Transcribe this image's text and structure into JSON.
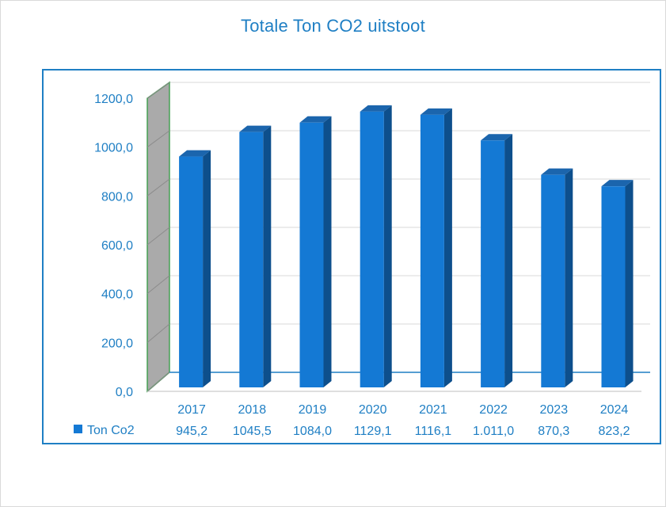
{
  "chart_data": {
    "type": "bar",
    "title": "Totale Ton CO2 uitstoot",
    "categories": [
      "2017",
      "2018",
      "2019",
      "2020",
      "2021",
      "2022",
      "2023",
      "2024"
    ],
    "series": [
      {
        "name": "Ton Co2",
        "values": [
          945.2,
          1045.5,
          1084.0,
          1129.1,
          1116.1,
          1011.0,
          870.3,
          823.2
        ],
        "labels": [
          "945,2",
          "1045,5",
          "1084,0",
          "1129,1",
          "1116,1",
          "1.011,0",
          "870,3",
          "823,2"
        ]
      }
    ],
    "ylim": [
      0,
      1200
    ],
    "yticks": [
      "0,0",
      "200,0",
      "400,0",
      "600,0",
      "800,0",
      "1000,0",
      "1200,0"
    ],
    "grid": true,
    "legend": "data-table",
    "three_d": true
  },
  "colors": {
    "bar_front": "#1479d4",
    "bar_side": "#0d4f8c",
    "bar_top": "#1b65ad",
    "axis_text": "#1f7fc4",
    "side_wall": "#a6a6a6",
    "side_wall_edge": "#3a9b4a",
    "grid": "#d9d9d9"
  }
}
